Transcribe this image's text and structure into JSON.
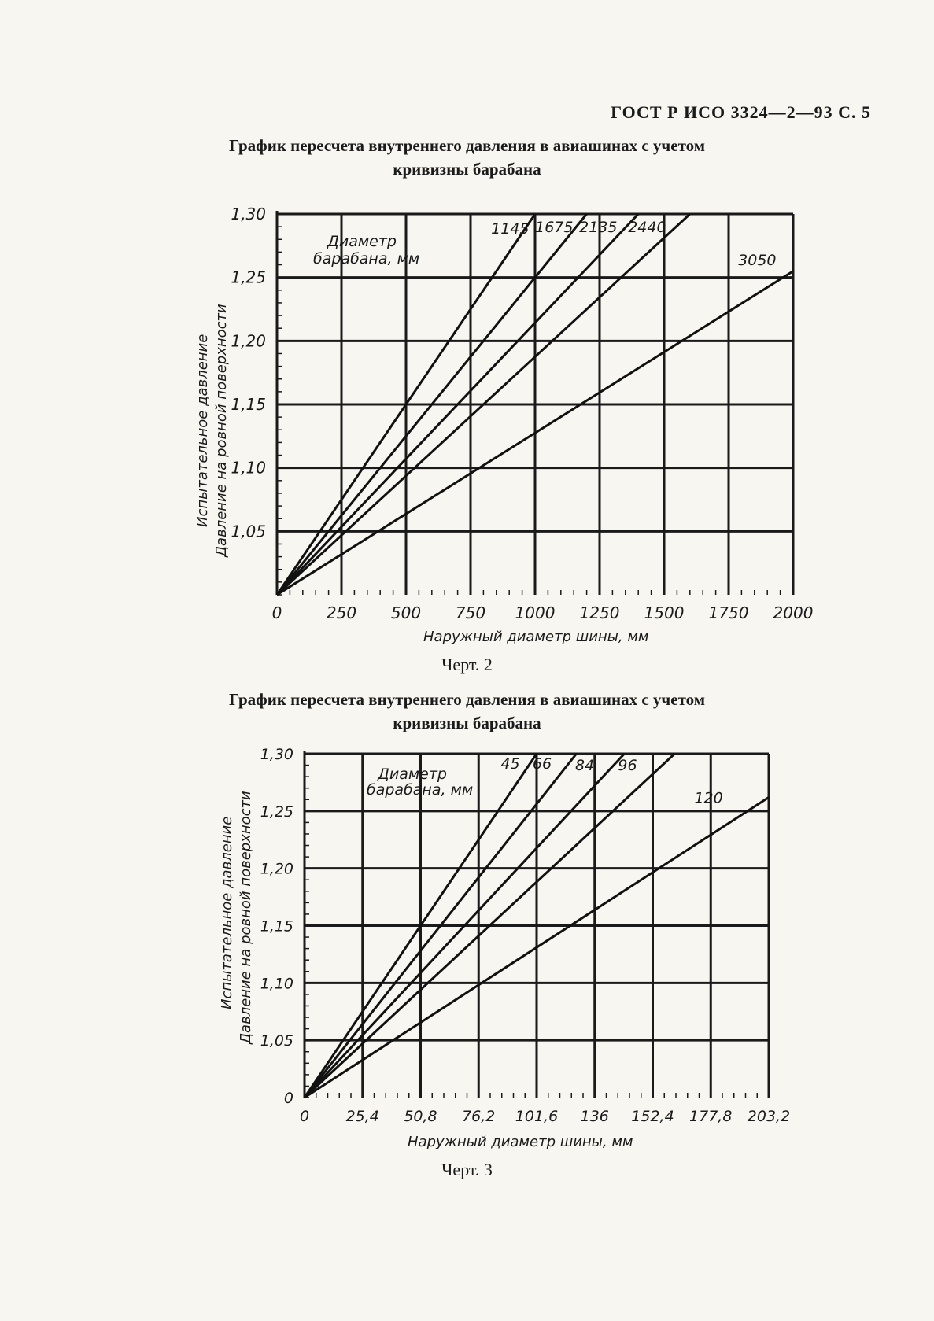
{
  "header": {
    "code": "ГОСТ Р ИСО 3324—2—93 С. 5"
  },
  "charts": [
    {
      "title_line1": "График пересчета внутреннего давления в авиашинах с учетом",
      "title_line2": "кривизны барабана",
      "caption": "Черт. 2",
      "ylabel_line1": "Испытательное давление",
      "ylabel_line2": "Давление на ровной поверхности",
      "xlabel": "Наружный диаметр шины, мм",
      "legend_title_line1": "Диаметр",
      "legend_title_line2": "барабана, мм",
      "x_tick_labels": [
        "0",
        "250",
        "500",
        "750",
        "1000",
        "1250",
        "1500",
        "1750",
        "2000"
      ],
      "y_tick_labels": [
        "1,05",
        "1,10",
        "1,15",
        "1,20",
        "1,25",
        "1,30"
      ]
    },
    {
      "title_line1": "График пересчета внутреннего давления в авиашинах с учетом",
      "title_line2": "кривизны барабана",
      "caption": "Черт. 3",
      "ylabel_line1": "Испытательное давление",
      "ylabel_line2": "Давление на ровной поверхности",
      "xlabel": "Наружный диаметр шины, мм",
      "legend_title_line1": "Диаметр",
      "legend_title_line2": "барабана, мм",
      "x_tick_labels": [
        "0",
        "25,4",
        "50,8",
        "76,2",
        "101,6",
        "136",
        "152,4",
        "177,8",
        "203,2"
      ],
      "y_tick_labels": [
        "0",
        "1,05",
        "1,10",
        "1,15",
        "1,20",
        "1,25",
        "1,30"
      ]
    }
  ],
  "chart_data": [
    {
      "type": "line",
      "title": "График пересчета внутреннего давления в авиашинах с учетом кривизны барабана",
      "xlabel": "Наружный диаметр шины, мм",
      "ylabel": "Испытательное давление / Давление на ровной поверхности",
      "xlim": [
        0,
        2000
      ],
      "ylim": [
        1.0,
        1.3
      ],
      "x_ticks": [
        0,
        250,
        500,
        750,
        1000,
        1250,
        1500,
        1750,
        2000
      ],
      "y_ticks": [
        1.05,
        1.1,
        1.15,
        1.2,
        1.25,
        1.3
      ],
      "grid": true,
      "series": [
        {
          "name": "1145",
          "x": [
            0,
            1000
          ],
          "y": [
            1.0,
            1.3
          ]
        },
        {
          "name": "1675",
          "x": [
            0,
            1200
          ],
          "y": [
            1.0,
            1.3
          ]
        },
        {
          "name": "2135",
          "x": [
            0,
            1400
          ],
          "y": [
            1.0,
            1.3
          ]
        },
        {
          "name": "2440",
          "x": [
            0,
            1600
          ],
          "y": [
            1.0,
            1.3
          ]
        },
        {
          "name": "3050",
          "x": [
            0,
            2000
          ],
          "y": [
            1.0,
            1.255
          ]
        }
      ]
    },
    {
      "type": "line",
      "title": "График пересчета внутреннего давления в авиашинах с учетом кривизны барабана",
      "xlabel": "Наружный диаметр шины, мм",
      "ylabel": "Испытательное давление / Давление на ровной поверхности",
      "xlim": [
        0,
        203.2
      ],
      "ylim": [
        1.0,
        1.3
      ],
      "x_ticks": [
        0,
        25.4,
        50.8,
        76.2,
        101.6,
        136,
        152.4,
        177.8,
        203.2
      ],
      "y_ticks": [
        1.05,
        1.1,
        1.15,
        1.2,
        1.25,
        1.3
      ],
      "grid": true,
      "series": [
        {
          "name": "45",
          "x": [
            0,
            101.6
          ],
          "y": [
            1.0,
            1.3
          ]
        },
        {
          "name": "66",
          "x": [
            0,
            119
          ],
          "y": [
            1.0,
            1.3
          ]
        },
        {
          "name": "84",
          "x": [
            0,
            140
          ],
          "y": [
            1.0,
            1.3
          ]
        },
        {
          "name": "96",
          "x": [
            0,
            162
          ],
          "y": [
            1.0,
            1.3
          ]
        },
        {
          "name": "120",
          "x": [
            0,
            203.2
          ],
          "y": [
            1.0,
            1.262
          ]
        }
      ]
    }
  ]
}
